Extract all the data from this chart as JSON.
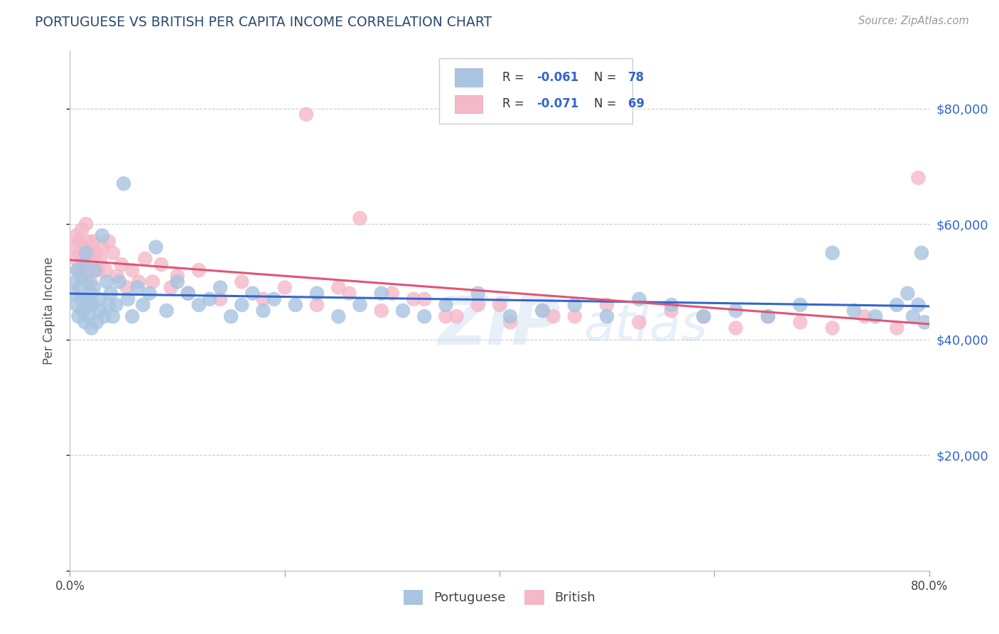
{
  "title": "PORTUGUESE VS BRITISH PER CAPITA INCOME CORRELATION CHART",
  "source": "Source: ZipAtlas.com",
  "ylabel": "Per Capita Income",
  "xlim": [
    0.0,
    0.8
  ],
  "ylim": [
    0,
    90000
  ],
  "yticks": [
    0,
    20000,
    40000,
    60000,
    80000
  ],
  "ytick_labels": [
    "",
    "$20,000",
    "$40,000",
    "$60,000",
    "$80,000"
  ],
  "xticks": [
    0.0,
    0.2,
    0.4,
    0.6,
    0.8
  ],
  "xtick_labels": [
    "0.0%",
    "",
    "",
    "",
    "80.0%"
  ],
  "color_portuguese": "#a8c4e0",
  "color_british": "#f4b8c8",
  "trendline_portuguese": "#3366cc",
  "trendline_british": "#e05575",
  "background_color": "#ffffff",
  "portuguese_x": [
    0.003,
    0.005,
    0.006,
    0.007,
    0.008,
    0.009,
    0.01,
    0.011,
    0.012,
    0.013,
    0.014,
    0.015,
    0.015,
    0.016,
    0.017,
    0.018,
    0.019,
    0.02,
    0.021,
    0.022,
    0.023,
    0.025,
    0.027,
    0.028,
    0.03,
    0.032,
    0.034,
    0.036,
    0.038,
    0.04,
    0.043,
    0.046,
    0.05,
    0.054,
    0.058,
    0.063,
    0.068,
    0.074,
    0.08,
    0.09,
    0.1,
    0.11,
    0.12,
    0.13,
    0.14,
    0.15,
    0.16,
    0.17,
    0.18,
    0.19,
    0.21,
    0.23,
    0.25,
    0.27,
    0.29,
    0.31,
    0.33,
    0.35,
    0.38,
    0.41,
    0.44,
    0.47,
    0.5,
    0.53,
    0.56,
    0.59,
    0.62,
    0.65,
    0.68,
    0.71,
    0.73,
    0.75,
    0.77,
    0.78,
    0.785,
    0.79,
    0.793,
    0.796
  ],
  "portuguese_y": [
    48000,
    50000,
    46000,
    52000,
    44000,
    49000,
    51000,
    47000,
    45000,
    53000,
    43000,
    55000,
    47000,
    46000,
    50000,
    44000,
    48000,
    42000,
    46000,
    49000,
    52000,
    43000,
    47000,
    45000,
    58000,
    44000,
    50000,
    46000,
    48000,
    44000,
    46000,
    50000,
    67000,
    47000,
    44000,
    49000,
    46000,
    48000,
    56000,
    45000,
    50000,
    48000,
    46000,
    47000,
    49000,
    44000,
    46000,
    48000,
    45000,
    47000,
    46000,
    48000,
    44000,
    46000,
    48000,
    45000,
    44000,
    46000,
    48000,
    44000,
    45000,
    46000,
    44000,
    47000,
    46000,
    44000,
    45000,
    44000,
    46000,
    55000,
    45000,
    44000,
    46000,
    48000,
    44000,
    46000,
    55000,
    43000
  ],
  "british_x": [
    0.003,
    0.005,
    0.006,
    0.007,
    0.008,
    0.009,
    0.01,
    0.011,
    0.012,
    0.013,
    0.014,
    0.015,
    0.016,
    0.017,
    0.018,
    0.019,
    0.02,
    0.022,
    0.024,
    0.026,
    0.028,
    0.03,
    0.033,
    0.036,
    0.04,
    0.044,
    0.048,
    0.053,
    0.058,
    0.064,
    0.07,
    0.077,
    0.085,
    0.094,
    0.1,
    0.11,
    0.12,
    0.14,
    0.16,
    0.18,
    0.2,
    0.23,
    0.26,
    0.29,
    0.32,
    0.35,
    0.38,
    0.41,
    0.44,
    0.47,
    0.5,
    0.53,
    0.56,
    0.59,
    0.62,
    0.65,
    0.68,
    0.71,
    0.74,
    0.77,
    0.22,
    0.25,
    0.3,
    0.36,
    0.4,
    0.27,
    0.33,
    0.45,
    0.79
  ],
  "british_y": [
    56000,
    54000,
    58000,
    52000,
    57000,
    55000,
    53000,
    59000,
    51000,
    56000,
    54000,
    60000,
    52000,
    57000,
    55000,
    50000,
    53000,
    57000,
    55000,
    52000,
    54000,
    56000,
    52000,
    57000,
    55000,
    51000,
    53000,
    49000,
    52000,
    50000,
    54000,
    50000,
    53000,
    49000,
    51000,
    48000,
    52000,
    47000,
    50000,
    47000,
    49000,
    46000,
    48000,
    45000,
    47000,
    44000,
    46000,
    43000,
    45000,
    44000,
    46000,
    43000,
    45000,
    44000,
    42000,
    44000,
    43000,
    42000,
    44000,
    42000,
    79000,
    49000,
    48000,
    44000,
    46000,
    61000,
    47000,
    44000,
    68000
  ]
}
